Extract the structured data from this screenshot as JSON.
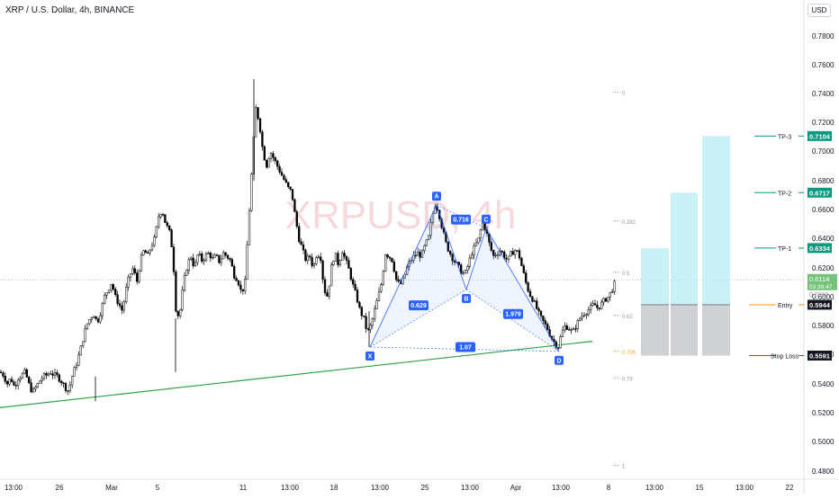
{
  "chart_title": "XRP / U.S. Dollar, 4h, BINANCE",
  "currency": "USD",
  "watermark": "XRPUSD, 4h",
  "colors": {
    "up": "#000000",
    "down": "#000000",
    "trendline": "#2ea043",
    "pattern": "#2962ff",
    "target_box": "#b2ebf2",
    "stop_box": "#c8c9cc",
    "tp": "#089981",
    "entry": "#ff9800",
    "stop": "#d32f2f"
  },
  "chart_data": {
    "type": "candlestick",
    "title": "XRP / U.S. Dollar, 4h, BINANCE",
    "y_axis": {
      "labels": [
        "0.7800",
        "0.7600",
        "0.7400",
        "0.7200",
        "0.7000",
        "0.6800",
        "0.6600",
        "0.6400",
        "0.6200",
        "0.6000",
        "0.5800",
        "0.5600",
        "0.5400",
        "0.5200",
        "0.5000",
        "0.4800"
      ],
      "ylim": [
        0.475,
        0.79
      ]
    },
    "x_axis": {
      "labels": [
        "13:00",
        "26",
        "Mar",
        "5",
        "11",
        "13:00",
        "18",
        "13:00",
        "25",
        "13:00",
        "Apr",
        "13:00",
        "8",
        "13:00",
        "15",
        "13:00",
        "22"
      ]
    },
    "price_path": [
      [
        0,
        0.548
      ],
      [
        4,
        0.546
      ],
      [
        8,
        0.54
      ],
      [
        12,
        0.544
      ],
      [
        16,
        0.538
      ],
      [
        20,
        0.544
      ],
      [
        24,
        0.546
      ],
      [
        28,
        0.548
      ],
      [
        32,
        0.54
      ],
      [
        36,
        0.534
      ],
      [
        40,
        0.538
      ],
      [
        44,
        0.542
      ],
      [
        48,
        0.545
      ],
      [
        52,
        0.546
      ],
      [
        56,
        0.548
      ],
      [
        60,
        0.546
      ],
      [
        64,
        0.545
      ],
      [
        68,
        0.542
      ],
      [
        72,
        0.538
      ],
      [
        76,
        0.535
      ],
      [
        80,
        0.545
      ],
      [
        84,
        0.552
      ],
      [
        88,
        0.56
      ],
      [
        92,
        0.57
      ],
      [
        96,
        0.58
      ],
      [
        100,
        0.585
      ],
      [
        104,
        0.588
      ],
      [
        108,
        0.582
      ],
      [
        112,
        0.59
      ],
      [
        116,
        0.6
      ],
      [
        120,
        0.605
      ],
      [
        124,
        0.61
      ],
      [
        128,
        0.6
      ],
      [
        132,
        0.595
      ],
      [
        136,
        0.59
      ],
      [
        140,
        0.605
      ],
      [
        144,
        0.615
      ],
      [
        148,
        0.62
      ],
      [
        152,
        0.61
      ],
      [
        156,
        0.625
      ],
      [
        160,
        0.632
      ],
      [
        164,
        0.628
      ],
      [
        168,
        0.635
      ],
      [
        172,
        0.64
      ],
      [
        176,
        0.655
      ],
      [
        180,
        0.66
      ],
      [
        184,
        0.65
      ],
      [
        188,
        0.645
      ],
      [
        192,
        0.63
      ],
      [
        196,
        0.585
      ],
      [
        200,
        0.59
      ],
      [
        204,
        0.61
      ],
      [
        208,
        0.622
      ],
      [
        212,
        0.628
      ],
      [
        216,
        0.62
      ],
      [
        220,
        0.63
      ],
      [
        224,
        0.625
      ],
      [
        228,
        0.628
      ],
      [
        232,
        0.63
      ],
      [
        236,
        0.626
      ],
      [
        240,
        0.628
      ],
      [
        244,
        0.624
      ],
      [
        248,
        0.63
      ],
      [
        252,
        0.628
      ],
      [
        256,
        0.625
      ],
      [
        260,
        0.615
      ],
      [
        264,
        0.612
      ],
      [
        268,
        0.603
      ],
      [
        272,
        0.608
      ],
      [
        276,
        0.65
      ],
      [
        280,
        0.69
      ],
      [
        284,
        0.73
      ],
      [
        288,
        0.72
      ],
      [
        292,
        0.7
      ],
      [
        296,
        0.69
      ],
      [
        300,
        0.7
      ],
      [
        304,
        0.695
      ],
      [
        308,
        0.69
      ],
      [
        312,
        0.685
      ],
      [
        316,
        0.68
      ],
      [
        320,
        0.675
      ],
      [
        324,
        0.672
      ],
      [
        328,
        0.655
      ],
      [
        332,
        0.64
      ],
      [
        336,
        0.632
      ],
      [
        340,
        0.625
      ],
      [
        344,
        0.628
      ],
      [
        348,
        0.62
      ],
      [
        352,
        0.63
      ],
      [
        356,
        0.628
      ],
      [
        360,
        0.605
      ],
      [
        364,
        0.6
      ],
      [
        368,
        0.62
      ],
      [
        372,
        0.63
      ],
      [
        376,
        0.622
      ],
      [
        380,
        0.632
      ],
      [
        384,
        0.625
      ],
      [
        388,
        0.618
      ],
      [
        392,
        0.608
      ],
      [
        396,
        0.6
      ],
      [
        400,
        0.59
      ],
      [
        404,
        0.585
      ],
      [
        408,
        0.575
      ],
      [
        412,
        0.58
      ],
      [
        416,
        0.59
      ],
      [
        420,
        0.6
      ],
      [
        424,
        0.61
      ],
      [
        428,
        0.63
      ],
      [
        432,
        0.628
      ],
      [
        436,
        0.625
      ],
      [
        440,
        0.612
      ],
      [
        444,
        0.608
      ],
      [
        448,
        0.612
      ],
      [
        452,
        0.62
      ],
      [
        456,
        0.625
      ],
      [
        460,
        0.628
      ],
      [
        464,
        0.63
      ],
      [
        468,
        0.628
      ],
      [
        472,
        0.635
      ],
      [
        476,
        0.64
      ],
      [
        480,
        0.655
      ],
      [
        484,
        0.665
      ],
      [
        488,
        0.656
      ],
      [
        492,
        0.645
      ],
      [
        496,
        0.635
      ],
      [
        500,
        0.63
      ],
      [
        504,
        0.625
      ],
      [
        508,
        0.622
      ],
      [
        512,
        0.618
      ],
      [
        516,
        0.615
      ],
      [
        520,
        0.622
      ],
      [
        524,
        0.63
      ],
      [
        528,
        0.635
      ],
      [
        532,
        0.64
      ],
      [
        536,
        0.652
      ],
      [
        540,
        0.645
      ],
      [
        544,
        0.635
      ],
      [
        548,
        0.628
      ],
      [
        552,
        0.63
      ],
      [
        556,
        0.632
      ],
      [
        560,
        0.628
      ],
      [
        564,
        0.625
      ],
      [
        568,
        0.63
      ],
      [
        572,
        0.632
      ],
      [
        576,
        0.63
      ],
      [
        580,
        0.62
      ],
      [
        584,
        0.61
      ],
      [
        588,
        0.602
      ],
      [
        592,
        0.598
      ],
      [
        596,
        0.592
      ],
      [
        600,
        0.586
      ],
      [
        604,
        0.582
      ],
      [
        608,
        0.578
      ],
      [
        612,
        0.572
      ],
      [
        616,
        0.568
      ],
      [
        620,
        0.565
      ],
      [
        624,
        0.575
      ],
      [
        628,
        0.58
      ],
      [
        632,
        0.578
      ],
      [
        636,
        0.575
      ],
      [
        640,
        0.58
      ],
      [
        644,
        0.585
      ],
      [
        648,
        0.588
      ],
      [
        652,
        0.59
      ],
      [
        656,
        0.592
      ],
      [
        660,
        0.595
      ],
      [
        664,
        0.592
      ],
      [
        668,
        0.595
      ],
      [
        672,
        0.598
      ],
      [
        676,
        0.6
      ],
      [
        680,
        0.605
      ],
      [
        684,
        0.611
      ]
    ],
    "current_price": "0.6114",
    "countdown": "03:39:47",
    "trendline": {
      "from": [
        0,
        0.5235
      ],
      "to": [
        658,
        0.569
      ]
    },
    "harmonic_pattern": {
      "points": [
        {
          "label": "X",
          "x": 411,
          "price": 0.565
        },
        {
          "label": "A",
          "x": 485,
          "price": 0.663
        },
        {
          "label": "B",
          "x": 518,
          "price": 0.605
        },
        {
          "label": "C",
          "x": 540,
          "price": 0.647
        },
        {
          "label": "D",
          "x": 621,
          "price": 0.562
        }
      ],
      "ratios": [
        {
          "value": "0.716",
          "x": 512,
          "price": 0.653
        },
        {
          "value": "0.629",
          "x": 465,
          "price": 0.594
        },
        {
          "value": "1.979",
          "x": 570,
          "price": 0.588
        },
        {
          "value": "1.07",
          "x": 517,
          "price": 0.565
        }
      ]
    },
    "fib_levels": [
      {
        "label": "0",
        "price": 0.741
      },
      {
        "label": "0.382",
        "price": 0.652
      },
      {
        "label": "0.5",
        "price": 0.617
      },
      {
        "label": "0.62",
        "price": 0.587
      },
      {
        "label": "0.705",
        "price": 0.562
      },
      {
        "label": "0.79",
        "price": 0.544
      },
      {
        "label": "1",
        "price": 0.484
      }
    ],
    "position": {
      "entry": 0.5944,
      "stop_loss": 0.5591,
      "targets": [
        {
          "price": 0.6334,
          "x0": 712,
          "x1": 743
        },
        {
          "price": 0.6717,
          "x0": 745,
          "x1": 775
        },
        {
          "price": 0.7104,
          "x0": 780,
          "x1": 811
        }
      ]
    },
    "price_markers": [
      {
        "name": "TP-3",
        "value": "0.7104",
        "price": 0.7104
      },
      {
        "name": "TP-2",
        "value": "0.6717",
        "price": 0.6717
      },
      {
        "name": "TP-1",
        "value": "0.6334",
        "price": 0.6334
      },
      {
        "name": "Entry",
        "value": "0.5944",
        "price": 0.5944
      },
      {
        "name": "Stop Loss",
        "value": "0.5591",
        "price": 0.5591
      }
    ],
    "behind_label": "0.6000"
  }
}
